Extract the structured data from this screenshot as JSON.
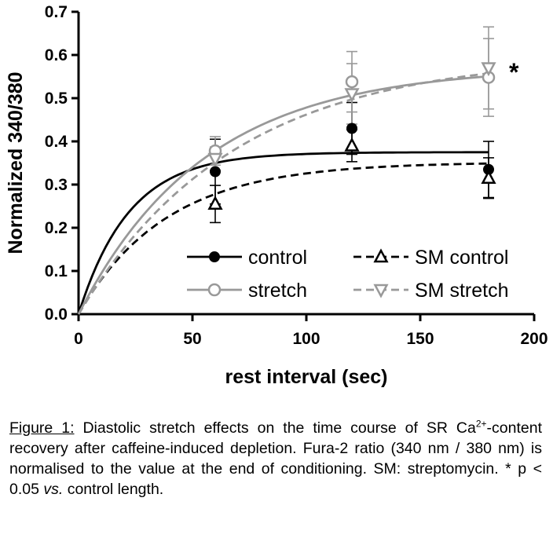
{
  "chart_data": {
    "type": "scatter",
    "xlabel": "rest interval (sec)",
    "ylabel": "Normalized 340/380",
    "xlim": [
      0,
      200
    ],
    "ylim": [
      0,
      0.7
    ],
    "xticks": [
      0,
      50,
      100,
      150,
      200
    ],
    "yticks": [
      0.0,
      0.1,
      0.2,
      0.3,
      0.4,
      0.5,
      0.6,
      0.7
    ],
    "xtick_labels": [
      "0",
      "50",
      "100",
      "150",
      "200"
    ],
    "ytick_labels": [
      "0.0",
      "0.1",
      "0.2",
      "0.3",
      "0.4",
      "0.5",
      "0.6",
      "0.7"
    ],
    "legend_position": "bottom-right",
    "annotation": "*",
    "series": [
      {
        "name": "control",
        "marker": "filled-circle",
        "line": "solid",
        "color": "#000000",
        "x": [
          60,
          120,
          180
        ],
        "y": [
          0.33,
          0.43,
          0.335
        ],
        "err": [
          0.075,
          0.06,
          0.065
        ],
        "fit": {
          "plateau": 0.375,
          "k": 0.045
        }
      },
      {
        "name": "SM control",
        "marker": "open-triangle-up",
        "line": "dashed",
        "color": "#000000",
        "x": [
          60,
          120,
          180
        ],
        "y": [
          0.255,
          0.39,
          0.315
        ],
        "err": [
          0.043,
          0.037,
          0.047
        ],
        "fit": {
          "plateau": 0.352,
          "k": 0.026
        }
      },
      {
        "name": "stretch",
        "marker": "open-circle",
        "line": "solid",
        "color": "#999999",
        "x": [
          60,
          120,
          180
        ],
        "y": [
          0.378,
          0.538,
          0.548
        ],
        "err": [
          0.033,
          0.07,
          0.09
        ],
        "fit": {
          "plateau": 0.573,
          "k": 0.018
        }
      },
      {
        "name": "SM stretch",
        "marker": "open-triangle-down",
        "line": "dashed",
        "color": "#999999",
        "x": [
          60,
          120,
          180
        ],
        "y": [
          0.36,
          0.51,
          0.57
        ],
        "err": [
          0.027,
          0.07,
          0.095
        ],
        "fit": {
          "plateau": 0.6,
          "k": 0.0147
        }
      }
    ]
  },
  "caption": {
    "label": "Figure 1:",
    "line1": " Diastolic stretch effects on the time course of SR Ca",
    "superscript": "2+",
    "line2": "-content recovery after caffeine-induced depletion. Fura-2 ratio (340 nm / 380 nm) is normalised to the value at the end of conditioning. SM: streptomycin. * p < 0.05 ",
    "vs": "vs.",
    "line3": " control length."
  }
}
